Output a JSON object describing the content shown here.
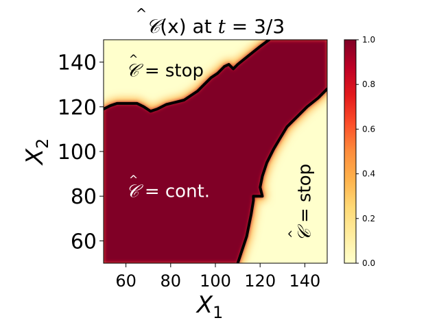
{
  "chart_data": {
    "type": "heatmap",
    "title": "Ĉ(x) at t = 3/3",
    "title_parts": {
      "func": "𝒞",
      "arg": "(x) at ",
      "t": "t",
      "eq": " = 3/3"
    },
    "xlabel": "X",
    "xlabel_sub": "1",
    "ylabel": "X",
    "ylabel_sub": "2",
    "xlim": [
      50,
      150
    ],
    "ylim": [
      50,
      150
    ],
    "xticks": [
      "60",
      "80",
      "100",
      "120",
      "140"
    ],
    "xtick_values": [
      60,
      80,
      100,
      120,
      140
    ],
    "yticks": [
      "60",
      "80",
      "100",
      "120",
      "140"
    ],
    "ytick_values": [
      60,
      80,
      100,
      120,
      140
    ],
    "colorbar": {
      "range": [
        0.0,
        1.0
      ],
      "ticks": [
        "0.0",
        "0.2",
        "0.4",
        "0.6",
        "0.8",
        "1.0"
      ],
      "tick_values": [
        0.0,
        0.2,
        0.4,
        0.6,
        0.8,
        1.0
      ],
      "colormap": "YlOrRd",
      "colors": [
        "#ffffcc",
        "#ffeda0",
        "#fed976",
        "#feb24c",
        "#fd8d3c",
        "#fc4e2a",
        "#e31a1c",
        "#bd0026",
        "#800026"
      ]
    },
    "upper_boundary": [
      [
        50,
        119
      ],
      [
        53,
        120.5
      ],
      [
        56,
        121.5
      ],
      [
        65,
        121.5
      ],
      [
        68,
        120
      ],
      [
        71,
        118
      ],
      [
        74,
        119
      ],
      [
        78,
        121
      ],
      [
        82,
        122
      ],
      [
        86,
        123
      ],
      [
        89,
        125
      ],
      [
        92,
        127
      ],
      [
        95,
        130
      ],
      [
        98,
        133
      ],
      [
        101,
        135
      ],
      [
        104,
        138
      ],
      [
        106,
        139
      ],
      [
        108,
        137
      ],
      [
        110,
        139
      ],
      [
        115,
        143
      ],
      [
        120,
        147
      ],
      [
        124,
        150
      ]
    ],
    "lower_boundary": [
      [
        110,
        50
      ],
      [
        112,
        56
      ],
      [
        114,
        62
      ],
      [
        115,
        67
      ],
      [
        116,
        72
      ],
      [
        117,
        78
      ],
      [
        117,
        80
      ],
      [
        121,
        80
      ],
      [
        120,
        84
      ],
      [
        121,
        89
      ],
      [
        123,
        95
      ],
      [
        126,
        101
      ],
      [
        129,
        106
      ],
      [
        132,
        111
      ],
      [
        136,
        115
      ],
      [
        141,
        120
      ],
      [
        146,
        124
      ],
      [
        150,
        128
      ]
    ],
    "regions": [
      {
        "label": "= stop",
        "value": 0,
        "x": 60,
        "y": 136
      },
      {
        "label": "= cont.",
        "value": 1,
        "x": 60,
        "y": 82
      },
      {
        "label": "= stop",
        "value": 0,
        "x": 140,
        "y": 72,
        "rotated": true
      }
    ],
    "region_symbol": "𝒞"
  }
}
